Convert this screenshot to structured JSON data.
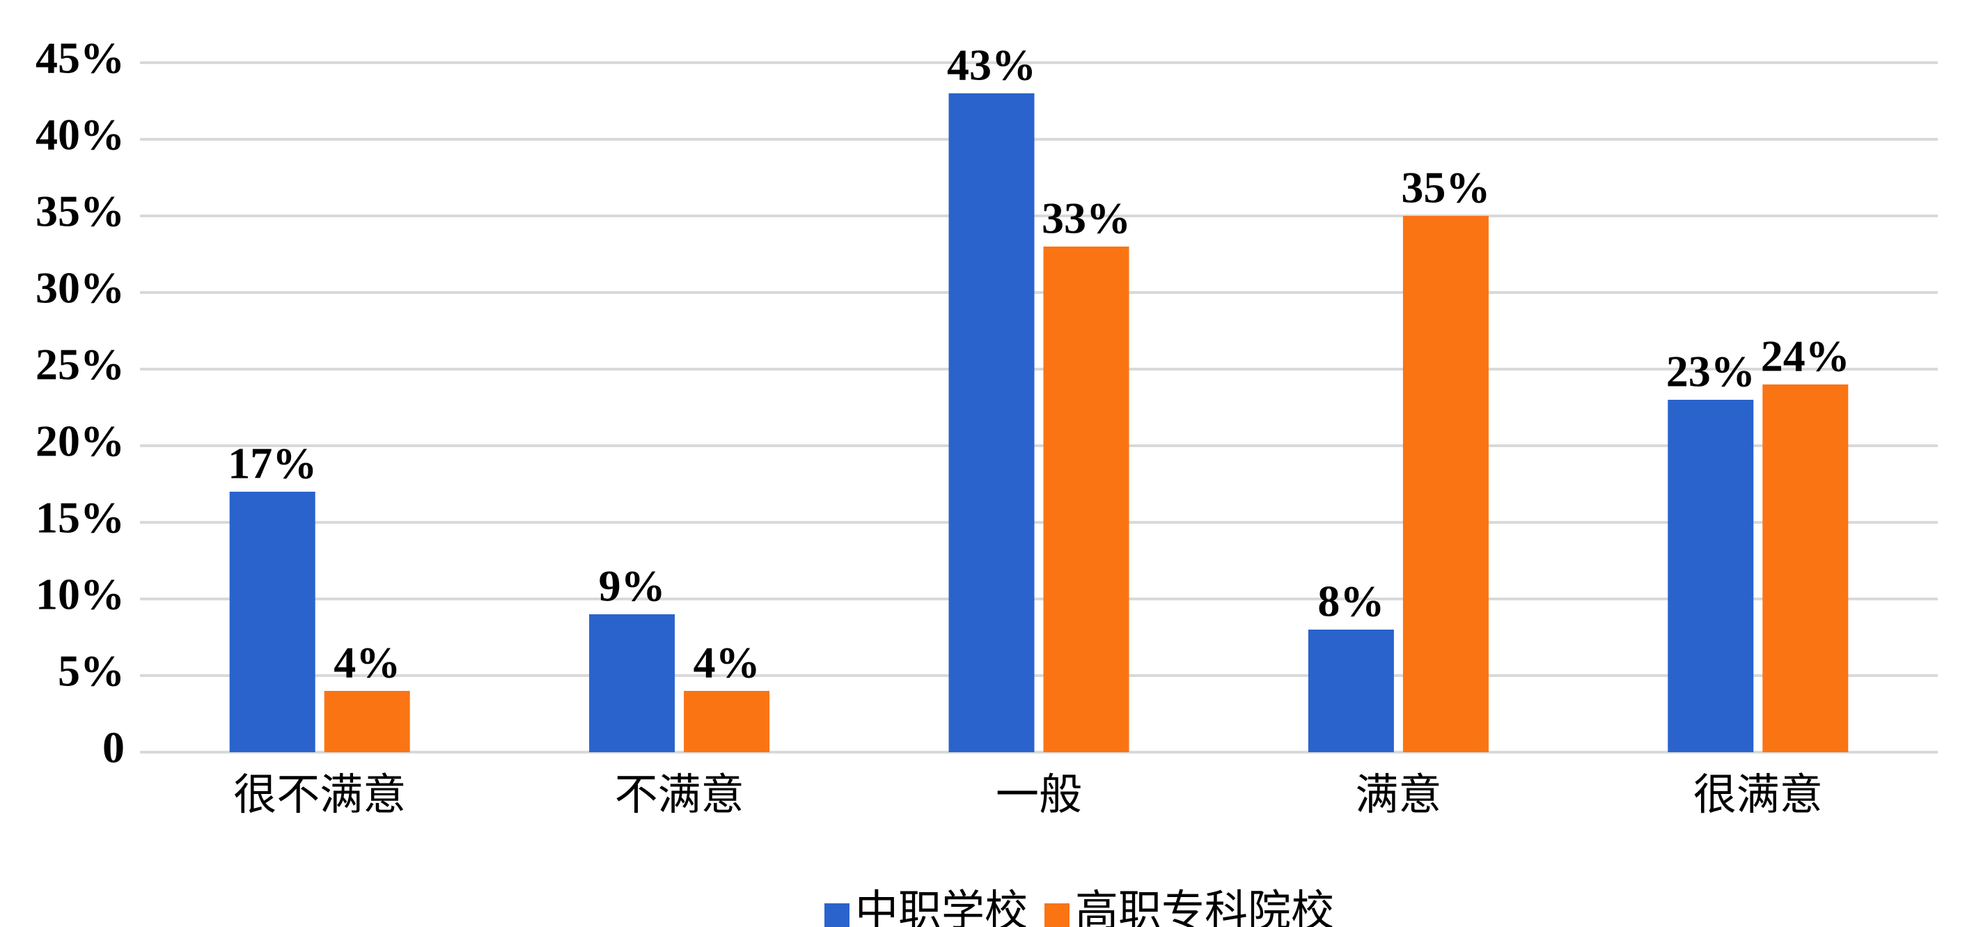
{
  "chart_data": {
    "type": "bar",
    "categories": [
      "很不满意",
      "不满意",
      "一般",
      "满意",
      "很满意"
    ],
    "series": [
      {
        "name": "中职学校",
        "color": "#2a63cc",
        "values": [
          17,
          9,
          43,
          8,
          23
        ],
        "value_labels": [
          "17%",
          "9%",
          "43%",
          "8%",
          "23%"
        ]
      },
      {
        "name": "高职专科院校",
        "color": "#fa7413",
        "values": [
          4,
          4,
          33,
          35,
          24
        ],
        "value_labels": [
          "4%",
          "4%",
          "33%",
          "35%",
          "24%"
        ]
      }
    ],
    "ylim": [
      0,
      45
    ],
    "yticks": [
      0,
      {
        "value": 5,
        "label": "5%"
      },
      {
        "value": 10,
        "label": "10%"
      },
      {
        "value": 15,
        "label": "15%"
      },
      {
        "value": 20,
        "label": "20%"
      },
      {
        "value": 25,
        "label": "25%"
      },
      {
        "value": 30,
        "label": "30%"
      },
      {
        "value": 35,
        "label": "35%"
      },
      {
        "value": 40,
        "label": "40%"
      },
      {
        "value": 45,
        "label": "45%"
      }
    ],
    "grid": true,
    "legend": "bottom"
  }
}
